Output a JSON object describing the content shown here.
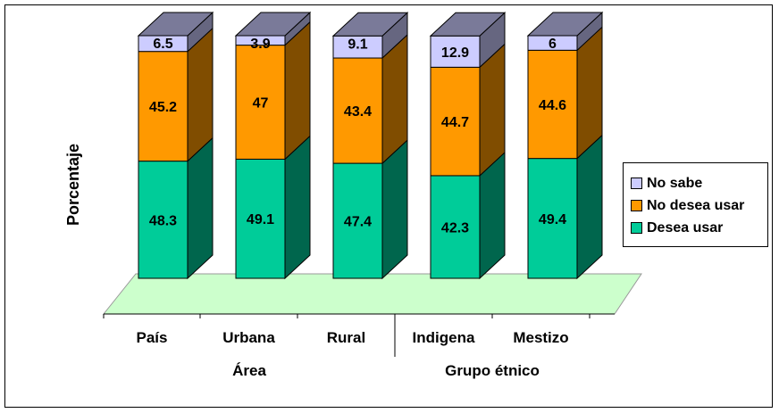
{
  "chart_data": {
    "type": "bar",
    "stacked": true,
    "style": "3d",
    "categories": [
      "País",
      "Urbana",
      "Rural",
      "Indigena",
      "Mestizo"
    ],
    "group_labels": [
      "Área",
      "Grupo étnico"
    ],
    "ylabel": "Porcentaje",
    "series": [
      {
        "name": "Desea usar",
        "values": [
          48.3,
          49.1,
          47.4,
          42.3,
          49.4
        ],
        "color": "#00cc99"
      },
      {
        "name": "No desea usar",
        "values": [
          45.2,
          47,
          43.4,
          44.7,
          44.6
        ],
        "color": "#ff9900"
      },
      {
        "name": "No sabe",
        "values": [
          6.5,
          3.9,
          9.1,
          12.9,
          6
        ],
        "color": "#ccccff"
      }
    ],
    "legend_position": "right",
    "floor_color": "#ccffcc"
  }
}
